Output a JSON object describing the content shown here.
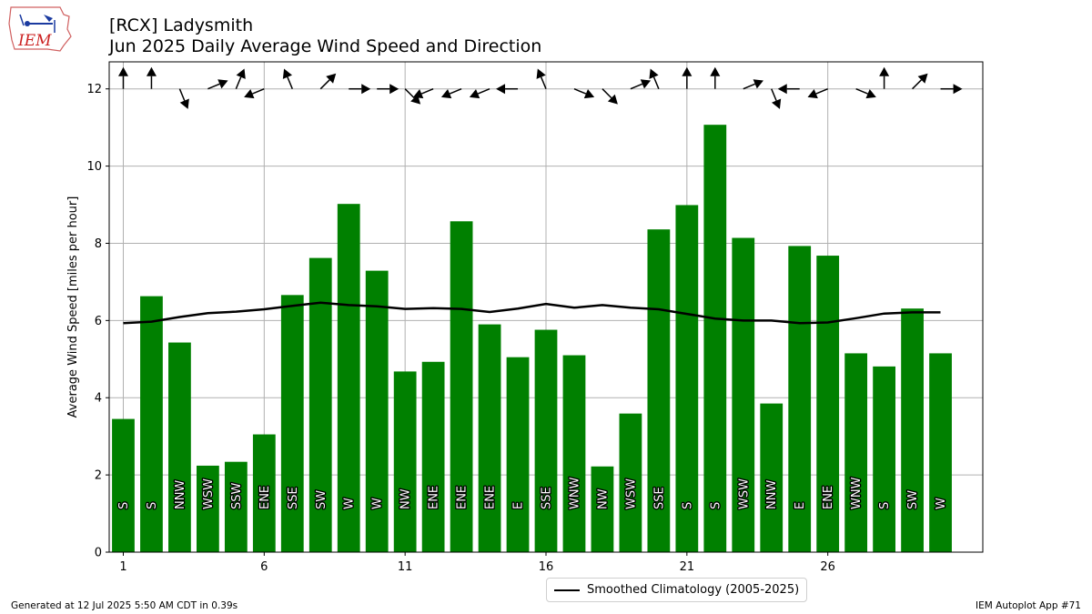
{
  "header": {
    "logo_text": "IEM",
    "title_line1": "[RCX] Ladysmith",
    "title_line2": "Jun 2025 Daily Average Wind Speed and Direction"
  },
  "footer": {
    "generated": "Generated at 12 Jul 2025 5:50 AM CDT in 0.39s",
    "app": "IEM Autoplot App #71"
  },
  "colors": {
    "bar": "#008000",
    "climatology": "#000000",
    "grid": "#b0b0b0"
  },
  "chart_data": {
    "type": "bar",
    "title": "[RCX] Ladysmith Jun 2025 Daily Average Wind Speed and Direction",
    "xlabel": "",
    "ylabel": "Average Wind Speed [miles per hour]",
    "xlim": [
      0.5,
      31.5
    ],
    "ylim": [
      0,
      12.7
    ],
    "x_ticks": [
      1,
      6,
      11,
      16,
      21,
      26
    ],
    "y_ticks": [
      0,
      2,
      4,
      6,
      8,
      10,
      12
    ],
    "grid": true,
    "legend_position": "bottom-center",
    "days": [
      1,
      2,
      3,
      4,
      5,
      6,
      7,
      8,
      9,
      10,
      11,
      12,
      13,
      14,
      15,
      16,
      17,
      18,
      19,
      20,
      21,
      22,
      23,
      24,
      25,
      26,
      27,
      28,
      29,
      30
    ],
    "series": [
      {
        "name": "",
        "values": [
          3.45,
          6.63,
          5.43,
          2.24,
          2.34,
          3.05,
          6.66,
          7.62,
          9.02,
          7.29,
          4.68,
          4.93,
          8.57,
          5.9,
          5.05,
          5.76,
          5.1,
          2.22,
          3.59,
          8.36,
          8.99,
          11.07,
          8.14,
          3.85,
          7.93,
          7.68,
          5.15,
          4.81,
          6.31,
          5.15
        ],
        "direction_labels": [
          "S",
          "S",
          "NNW",
          "WSW",
          "SSW",
          "ENE",
          "SSE",
          "SW",
          "W",
          "W",
          "NW",
          "ENE",
          "ENE",
          "ENE",
          "E",
          "SSE",
          "WNW",
          "NW",
          "WSW",
          "SSE",
          "S",
          "S",
          "WSW",
          "NNW",
          "E",
          "ENE",
          "WNW",
          "S",
          "SW",
          "W"
        ],
        "direction_degrees": [
          180,
          180,
          337.5,
          247.5,
          202.5,
          67.5,
          157.5,
          225,
          270,
          270,
          315,
          67.5,
          67.5,
          67.5,
          90,
          157.5,
          292.5,
          315,
          247.5,
          157.5,
          180,
          180,
          247.5,
          337.5,
          90,
          67.5,
          292.5,
          180,
          225,
          270
        ]
      },
      {
        "name": "Smoothed Climatology (2005-2025)",
        "type": "line",
        "values": [
          5.93,
          5.97,
          6.09,
          6.19,
          6.23,
          6.29,
          6.38,
          6.46,
          6.4,
          6.37,
          6.3,
          6.32,
          6.3,
          6.22,
          6.31,
          6.43,
          6.33,
          6.4,
          6.33,
          6.29,
          6.17,
          6.05,
          6.0,
          6.0,
          5.93,
          5.95,
          6.06,
          6.18,
          6.21,
          6.21
        ]
      }
    ]
  }
}
